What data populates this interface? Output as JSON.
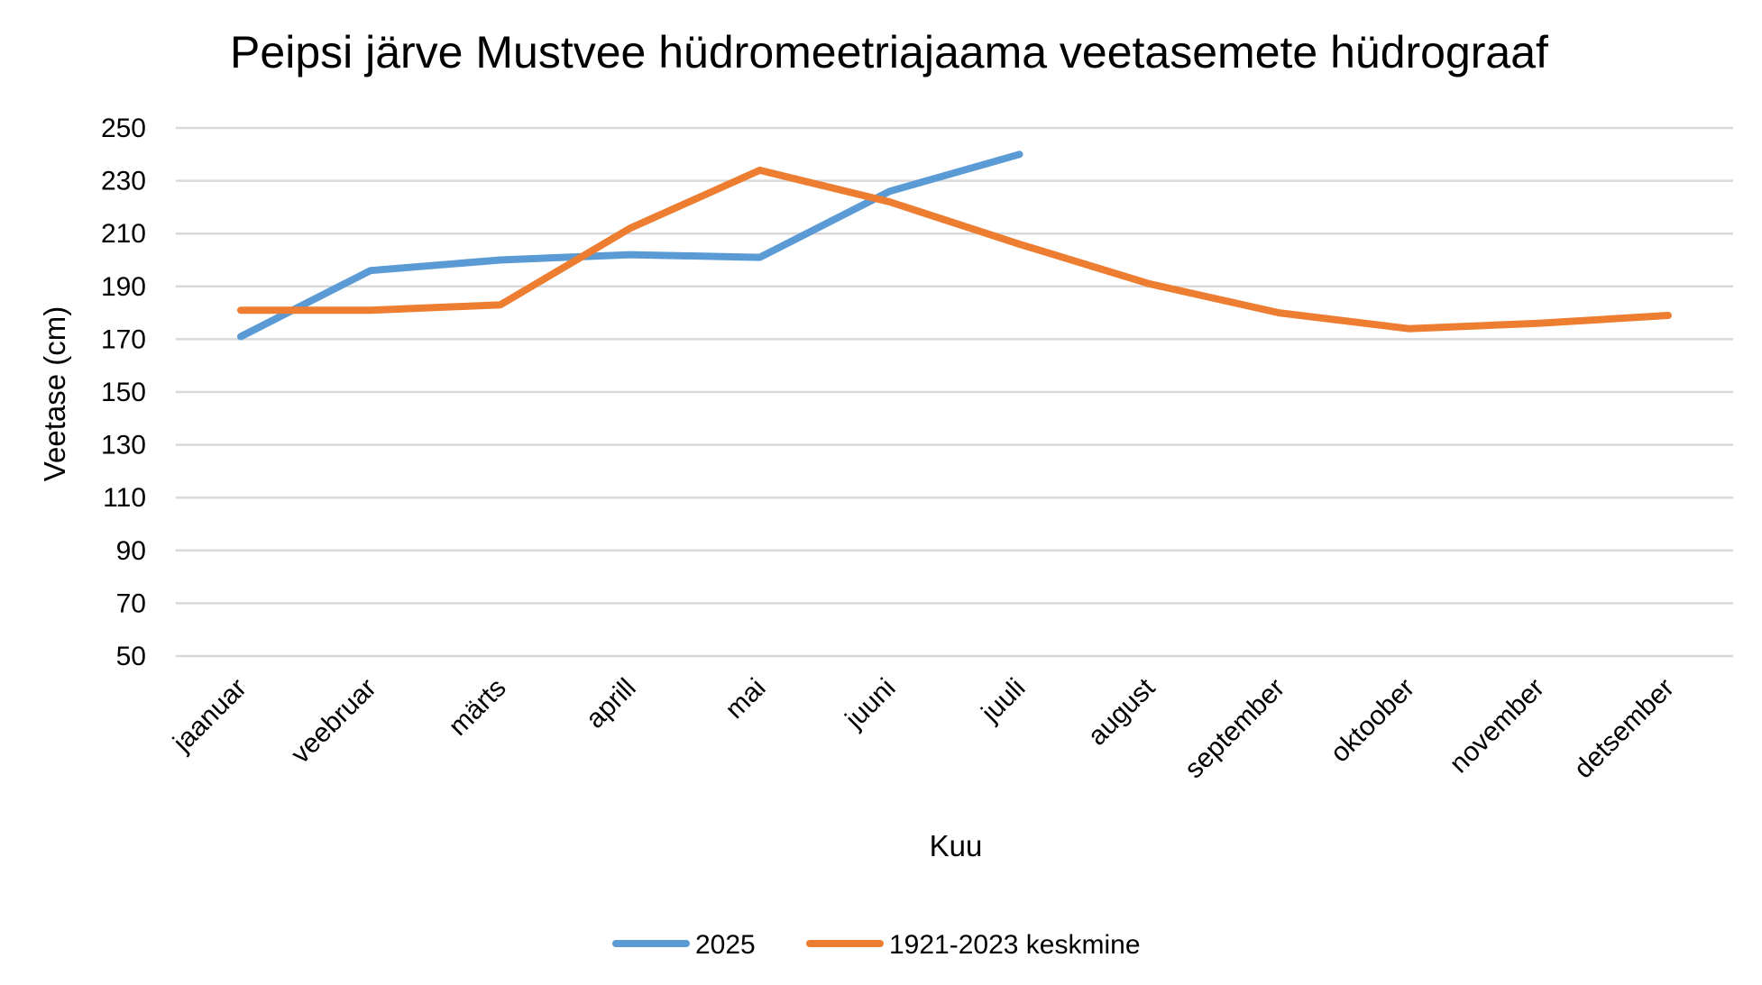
{
  "chart_data": {
    "type": "line",
    "title": "Peipsi järve Mustvee hüdromeetriajaama veetasemete hüdrograaf",
    "xlabel": "Kuu",
    "ylabel": "Veetase (cm)",
    "categories": [
      "jaanuar",
      "veebruar",
      "märts",
      "aprill",
      "mai",
      "juuni",
      "juuli",
      "august",
      "september",
      "oktoober",
      "november",
      "detsember"
    ],
    "ylim": [
      50,
      250
    ],
    "yticks": [
      50,
      70,
      90,
      110,
      130,
      150,
      170,
      190,
      210,
      230,
      250
    ],
    "grid": true,
    "legend_position": "bottom",
    "series": [
      {
        "name": "2025",
        "color": "#5b9bd5",
        "values": [
          171,
          196,
          200,
          202,
          201,
          226,
          240,
          null,
          null,
          null,
          null,
          null
        ]
      },
      {
        "name": "1921-2023 keskmine",
        "color": "#ed7d31",
        "values": [
          181,
          181,
          183,
          212,
          234,
          222,
          206,
          191,
          180,
          174,
          176,
          179
        ]
      }
    ]
  }
}
